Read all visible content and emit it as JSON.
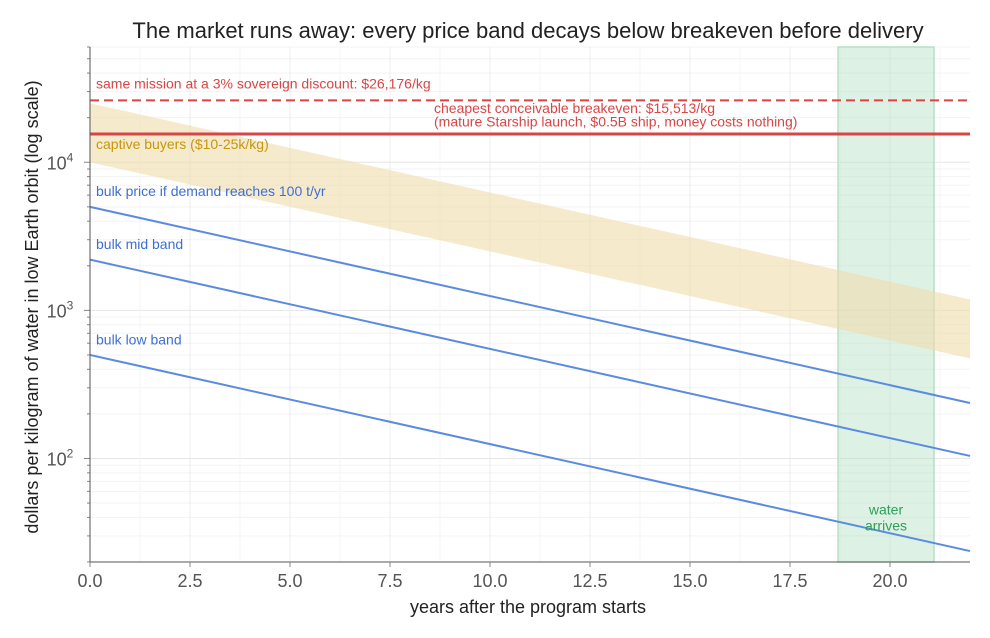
{
  "chart_data": {
    "type": "line",
    "title": "The market runs away: every price band decays below breakeven before delivery",
    "xlabel": "years after the program starts",
    "ylabel": "dollars per kilogram of water in low Earth orbit (log scale)",
    "xlim": [
      0,
      22
    ],
    "ylim": [
      20,
      60000
    ],
    "yscale": "log",
    "grid": true,
    "x_ticks": [
      {
        "value": 0,
        "label": "0.0"
      },
      {
        "value": 2.5,
        "label": "2.5"
      },
      {
        "value": 5,
        "label": "5.0"
      },
      {
        "value": 7.5,
        "label": "7.5"
      },
      {
        "value": 10,
        "label": "10.0"
      },
      {
        "value": 12.5,
        "label": "12.5"
      },
      {
        "value": 15,
        "label": "15.0"
      },
      {
        "value": 17.5,
        "label": "17.5"
      },
      {
        "value": 20,
        "label": "20.0"
      }
    ],
    "y_ticks": [
      {
        "value": 100,
        "base": "10",
        "exp": "2"
      },
      {
        "value": 1000,
        "base": "10",
        "exp": "3"
      },
      {
        "value": 10000,
        "base": "10",
        "exp": "4"
      }
    ],
    "series": [
      {
        "label": "bulk price if demand reaches 100 t/yr",
        "x": [
          0,
          22
        ],
        "y": [
          5000,
          237
        ],
        "color": "#5b8be0",
        "label_color": "#3f6fd0",
        "label_at": [
          0.15,
          5900
        ]
      },
      {
        "label": "bulk mid band",
        "x": [
          0,
          22
        ],
        "y": [
          2200,
          104
        ],
        "color": "#5b8be0",
        "label_color": "#3f6fd0",
        "label_at": [
          0.15,
          2600
        ]
      },
      {
        "label": "bulk low band",
        "x": [
          0,
          22
        ],
        "y": [
          500,
          23.7
        ],
        "color": "#5b8be0",
        "label_color": "#3f6fd0",
        "label_at": [
          0.15,
          590
        ]
      }
    ],
    "bands": [
      {
        "label": "captive buyers ($10-25k/kg)",
        "x": [
          0,
          22
        ],
        "y_low": [
          10000,
          474
        ],
        "y_high": [
          25000,
          1185
        ],
        "color": "#f0dcac",
        "label_color": "#c8960a",
        "label_at": [
          0.15,
          12300
        ]
      }
    ],
    "spans": [
      {
        "label": "water arrives",
        "lines": [
          "water",
          "arrives"
        ],
        "x_start": 18.7,
        "x_end": 21.1,
        "color": "#b5dfc5",
        "label_color": "#2e9e58",
        "label_at": [
          19.9,
          42
        ]
      }
    ],
    "hlines": [
      {
        "label": "same mission at a 3% sovereign discount: $26,176/kg",
        "y": 26176,
        "style": "dashed",
        "color": "#d94545",
        "label_at": [
          0.15,
          31500
        ]
      },
      {
        "label": "cheapest conceivable breakeven: $15,513/kg",
        "sublabel": "(mature Starship launch, $0.5B ship, money costs nothing)",
        "y": 15513,
        "style": "solid",
        "color": "#d94545",
        "label_at": [
          8.6,
          21500
        ],
        "sublabel_at": [
          8.6,
          17400
        ]
      }
    ]
  }
}
